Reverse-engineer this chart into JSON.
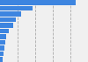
{
  "values": [
    430000,
    183000,
    121000,
    90000,
    76000,
    48000,
    37000,
    30000,
    26000,
    22000,
    14000
  ],
  "bar_color": "#3d85e0",
  "background_color": "#f0f0f0",
  "fig_background": "#ffffff",
  "grid_color": "#aaaaaa",
  "grid_style": "--",
  "xlim": [
    0,
    500000
  ],
  "xticks": [
    100000,
    200000,
    300000,
    400000
  ],
  "bar_height": 0.85
}
